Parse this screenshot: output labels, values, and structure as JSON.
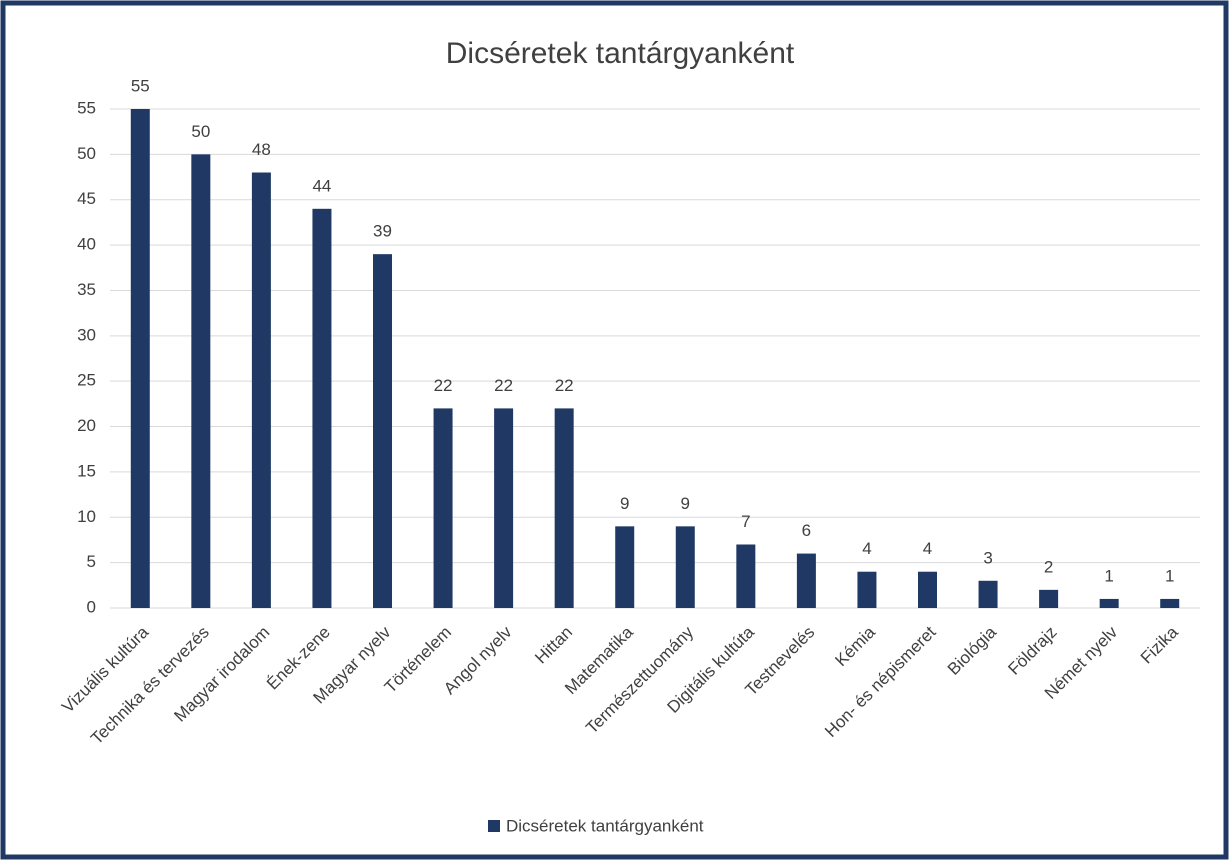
{
  "chart_data": {
    "type": "bar",
    "title": "Dicséretek tantárgyanként",
    "categories": [
      "Vizuális kultúra",
      "Technika és tervezés",
      "Magyar irodalom",
      "Ének-zene",
      "Magyar nyelv",
      "Történelem",
      "Angol nyelv",
      "Hittan",
      "Matematika",
      "Természettuomány",
      "Digitális kultúta",
      "Testnevelés",
      "Kémia",
      "Hon- és népismeret",
      "Biológia",
      "Földrajz",
      "Német nyelv",
      "Fizika"
    ],
    "series": [
      {
        "name": "Dicséretek tantárgyanként",
        "color": "#203864",
        "values": [
          55,
          50,
          48,
          44,
          39,
          22,
          22,
          22,
          9,
          9,
          7,
          6,
          4,
          4,
          3,
          2,
          1,
          1
        ]
      }
    ],
    "ylim": [
      0,
      55
    ],
    "yticks": [
      0,
      5,
      10,
      15,
      20,
      25,
      30,
      35,
      40,
      45,
      50,
      55
    ],
    "grid": true,
    "legend": "bottom",
    "data_labels": true
  }
}
